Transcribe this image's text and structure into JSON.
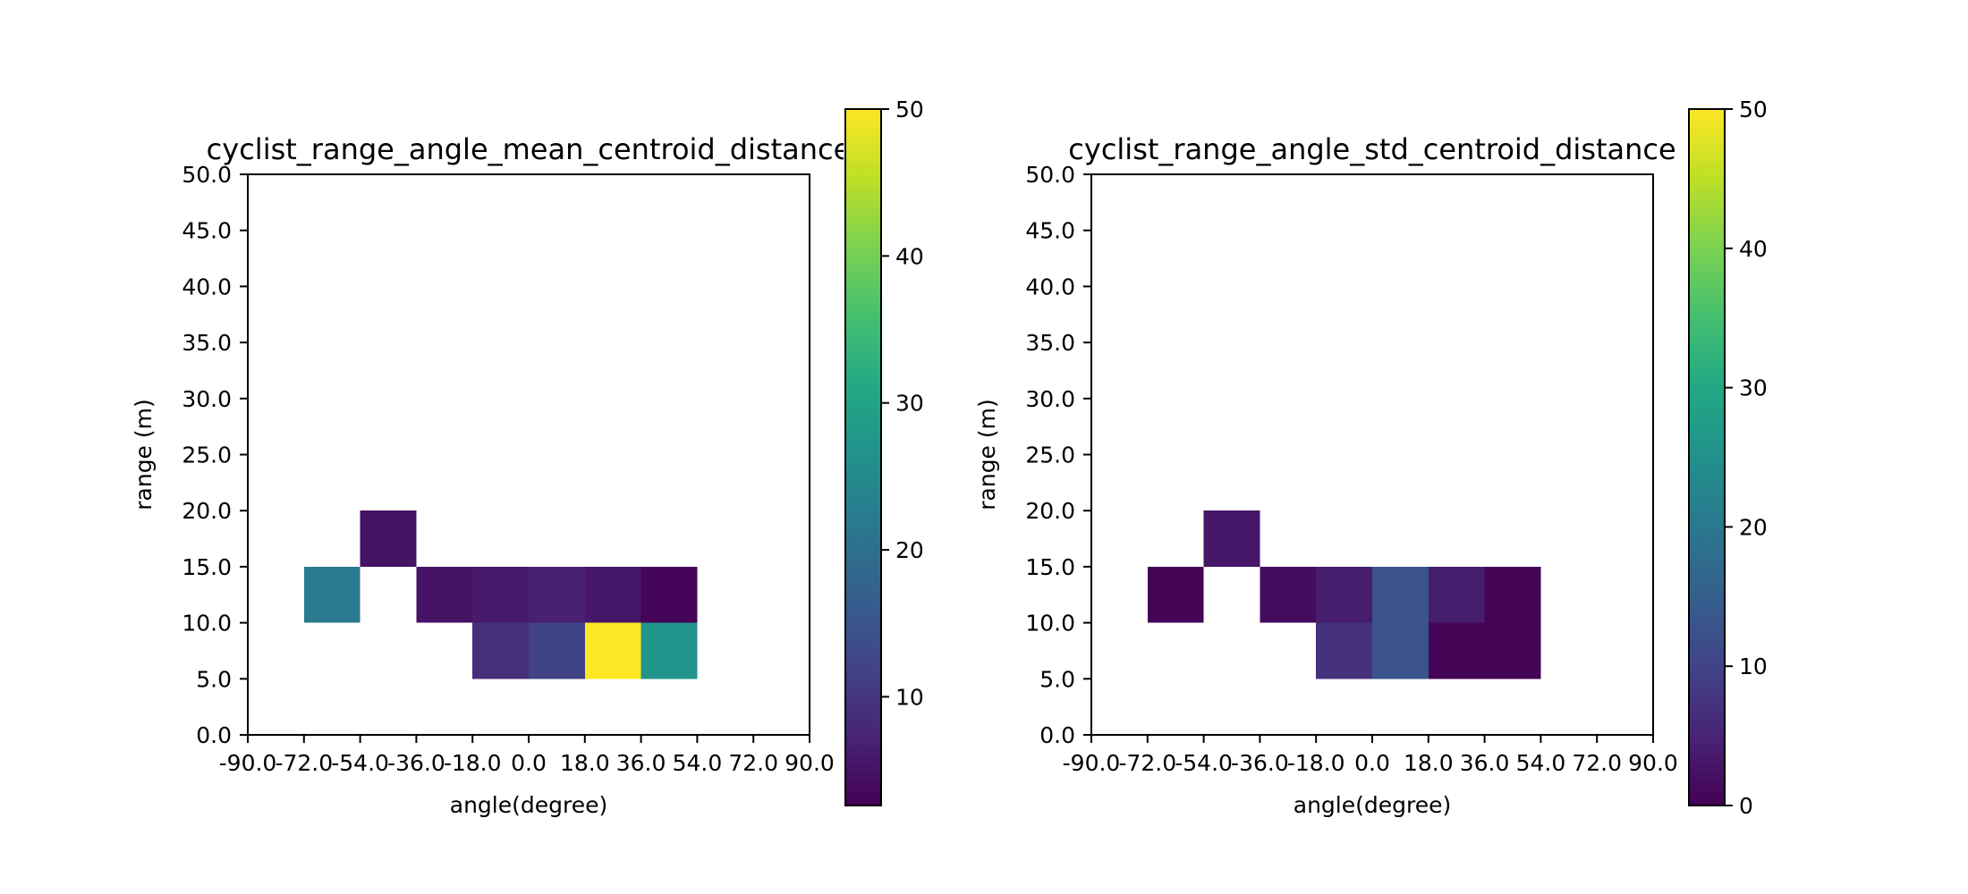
{
  "chart_data": [
    {
      "type": "heatmap",
      "title": "cyclist_range_angle_mean_centroid_distance",
      "xlabel": "angle(degree)",
      "ylabel": "range (m)",
      "x_ticks": [
        "-90.0",
        "-72.0",
        "-54.0",
        "-36.0",
        "-18.0",
        "0.0",
        "18.0",
        "36.0",
        "54.0",
        "72.0",
        "90.0"
      ],
      "y_ticks": [
        "0.0",
        "5.0",
        "10.0",
        "15.0",
        "20.0",
        "25.0",
        "30.0",
        "35.0",
        "40.0",
        "45.0",
        "50.0"
      ],
      "x_edges": [
        -90,
        -72,
        -54,
        -36,
        -18,
        0,
        18,
        36,
        54,
        72,
        90
      ],
      "y_edges": [
        0,
        5,
        10,
        15,
        20,
        25,
        30,
        35,
        40,
        45,
        50
      ],
      "xlim": [
        -90,
        90
      ],
      "ylim": [
        0,
        50
      ],
      "colormap": "viridis",
      "colorbar": {
        "range": [
          2.6,
          50
        ],
        "ticks": [
          "10",
          "20",
          "30",
          "40",
          "50"
        ]
      },
      "cells": [
        {
          "x": [
            -54,
            -36
          ],
          "y": [
            15,
            20
          ],
          "value": 5
        },
        {
          "x": [
            -72,
            -54
          ],
          "y": [
            10,
            15
          ],
          "value": 22
        },
        {
          "x": [
            -36,
            -18
          ],
          "y": [
            10,
            15
          ],
          "value": 5
        },
        {
          "x": [
            -18,
            0
          ],
          "y": [
            10,
            15
          ],
          "value": 6
        },
        {
          "x": [
            0,
            18
          ],
          "y": [
            10,
            15
          ],
          "value": 7
        },
        {
          "x": [
            18,
            36
          ],
          "y": [
            10,
            15
          ],
          "value": 5.5
        },
        {
          "x": [
            36,
            54
          ],
          "y": [
            10,
            15
          ],
          "value": 3
        },
        {
          "x": [
            -18,
            0
          ],
          "y": [
            5,
            10
          ],
          "value": 9
        },
        {
          "x": [
            0,
            18
          ],
          "y": [
            5,
            10
          ],
          "value": 12
        },
        {
          "x": [
            18,
            36
          ],
          "y": [
            5,
            10
          ],
          "value": 50
        },
        {
          "x": [
            36,
            54
          ],
          "y": [
            5,
            10
          ],
          "value": 27
        }
      ]
    },
    {
      "type": "heatmap",
      "title": "cyclist_range_angle_std_centroid_distance",
      "xlabel": "angle(degree)",
      "ylabel": "range (m)",
      "x_ticks": [
        "-90.0",
        "-72.0",
        "-54.0",
        "-36.0",
        "-18.0",
        "0.0",
        "18.0",
        "36.0",
        "54.0",
        "72.0",
        "90.0"
      ],
      "y_ticks": [
        "0.0",
        "5.0",
        "10.0",
        "15.0",
        "20.0",
        "25.0",
        "30.0",
        "35.0",
        "40.0",
        "45.0",
        "50.0"
      ],
      "x_edges": [
        -90,
        -72,
        -54,
        -36,
        -18,
        0,
        18,
        36,
        54,
        72,
        90
      ],
      "y_edges": [
        0,
        5,
        10,
        15,
        20,
        25,
        30,
        35,
        40,
        45,
        50
      ],
      "xlim": [
        -90,
        90
      ],
      "ylim": [
        0,
        50
      ],
      "colormap": "viridis",
      "colorbar": {
        "range": [
          0,
          50
        ],
        "ticks": [
          "0",
          "10",
          "20",
          "30",
          "40",
          "50"
        ]
      },
      "cells": [
        {
          "x": [
            -54,
            -36
          ],
          "y": [
            15,
            20
          ],
          "value": 3
        },
        {
          "x": [
            -72,
            -54
          ],
          "y": [
            10,
            15
          ],
          "value": 0.5
        },
        {
          "x": [
            -36,
            -18
          ],
          "y": [
            10,
            15
          ],
          "value": 1.5
        },
        {
          "x": [
            -18,
            0
          ],
          "y": [
            10,
            15
          ],
          "value": 4
        },
        {
          "x": [
            0,
            18
          ],
          "y": [
            10,
            15
          ],
          "value": 13
        },
        {
          "x": [
            18,
            36
          ],
          "y": [
            10,
            15
          ],
          "value": 4
        },
        {
          "x": [
            36,
            54
          ],
          "y": [
            10,
            15
          ],
          "value": 0.5
        },
        {
          "x": [
            -18,
            0
          ],
          "y": [
            5,
            10
          ],
          "value": 7
        },
        {
          "x": [
            0,
            18
          ],
          "y": [
            5,
            10
          ],
          "value": 13
        },
        {
          "x": [
            18,
            36
          ],
          "y": [
            5,
            10
          ],
          "value": 0.5
        },
        {
          "x": [
            36,
            54
          ],
          "y": [
            5,
            10
          ],
          "value": 0.5
        }
      ]
    }
  ]
}
